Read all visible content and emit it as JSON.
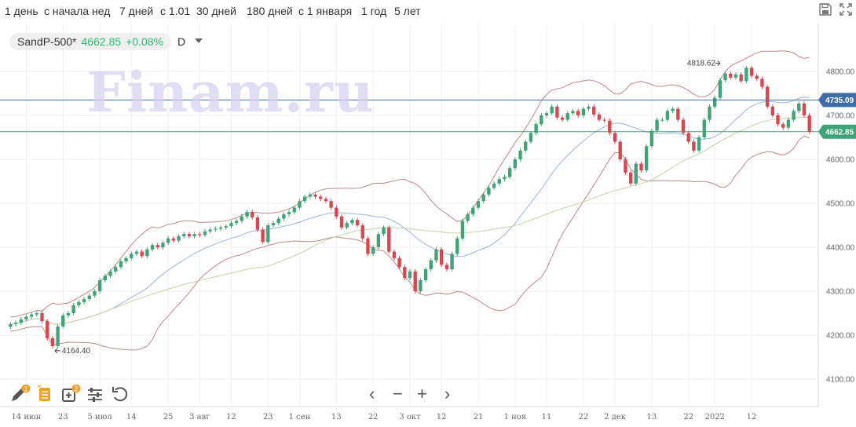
{
  "toolbar": {
    "periods": [
      "1 день",
      "с начала нед",
      "7 дней",
      "с 1.01",
      "30 дней",
      "180 дней",
      "с 1 января",
      "1 год",
      "5 лет"
    ],
    "save_icon": "save-icon",
    "fullscreen_icon": "fullscreen-icon"
  },
  "legend": {
    "instrument": "SandP-500*",
    "price": "4662.85",
    "change": "+0.08%",
    "interval": "D"
  },
  "watermark": "Finam.ru",
  "bottom_tools": {
    "draw_badge": "1",
    "layers_badge": "2",
    "icons": [
      "pencil-icon",
      "notes-icon",
      "add-indicator-icon",
      "settings-icon",
      "undo-icon"
    ],
    "nav": [
      "‹",
      "−",
      "+",
      "›"
    ]
  },
  "chart_data": {
    "type": "candlestick",
    "y_ticks": [
      4100,
      4200,
      4300,
      4400,
      4500,
      4600,
      4700,
      4800
    ],
    "ylim": [
      4075,
      4880
    ],
    "x_ticks": [
      {
        "label": "14 июн",
        "i": 3
      },
      {
        "label": "23",
        "i": 10
      },
      {
        "label": "5 июл",
        "i": 17
      },
      {
        "label": "14",
        "i": 23
      },
      {
        "label": "25",
        "i": 30
      },
      {
        "label": "3 авг",
        "i": 36
      },
      {
        "label": "12",
        "i": 42
      },
      {
        "label": "23",
        "i": 49
      },
      {
        "label": "1 сен",
        "i": 55
      },
      {
        "label": "13",
        "i": 62
      },
      {
        "label": "22",
        "i": 69
      },
      {
        "label": "3 окт",
        "i": 76
      },
      {
        "label": "12",
        "i": 82
      },
      {
        "label": "21",
        "i": 89
      },
      {
        "label": "1 ноя",
        "i": 96
      },
      {
        "label": "11",
        "i": 102
      },
      {
        "label": "22",
        "i": 109
      },
      {
        "label": "2 дек",
        "i": 115
      },
      {
        "label": "13",
        "i": 122
      },
      {
        "label": "22",
        "i": 129
      },
      {
        "label": "2022",
        "i": 134
      },
      {
        "label": "12",
        "i": 141
      }
    ],
    "price_labels": [
      {
        "value": 4735.09,
        "text": "4735.09",
        "color": "#3f6ea6"
      },
      {
        "value": 4662.85,
        "text": "4662.85",
        "color": "#3fa377"
      }
    ],
    "annotations": [
      {
        "text": "4818.62",
        "value": 4818.62,
        "i": 135
      },
      {
        "text": "4164.40",
        "value": 4164.4,
        "i": 8
      }
    ],
    "closes": [
      4225,
      4228,
      4236,
      4242,
      4247,
      4250,
      4232,
      4193,
      4175,
      4220,
      4245,
      4250,
      4268,
      4275,
      4282,
      4290,
      4300,
      4325,
      4335,
      4345,
      4355,
      4368,
      4375,
      4385,
      4390,
      4380,
      4395,
      4405,
      4400,
      4410,
      4420,
      4415,
      4425,
      4430,
      4425,
      4430,
      4428,
      4436,
      4440,
      4442,
      4445,
      4448,
      4455,
      4460,
      4470,
      4480,
      4468,
      4440,
      4412,
      4450,
      4455,
      4465,
      4475,
      4480,
      4490,
      4505,
      4515,
      4520,
      4515,
      4510,
      4505,
      4490,
      4470,
      4445,
      4455,
      4462,
      4450,
      4420,
      4385,
      4400,
      4430,
      4445,
      4390,
      4375,
      4355,
      4330,
      4345,
      4300,
      4325,
      4350,
      4370,
      4395,
      4360,
      4350,
      4385,
      4420,
      4460,
      4475,
      4490,
      4505,
      4520,
      4535,
      4545,
      4555,
      4560,
      4580,
      4600,
      4620,
      4640,
      4660,
      4680,
      4700,
      4705,
      4720,
      4695,
      4690,
      4705,
      4710,
      4700,
      4715,
      4720,
      4702,
      4690,
      4688,
      4660,
      4640,
      4600,
      4570,
      4545,
      4590,
      4575,
      4630,
      4665,
      4690,
      4690,
      4710,
      4715,
      4690,
      4660,
      4640,
      4620,
      4650,
      4690,
      4720,
      4740,
      4780,
      4795,
      4786,
      4793,
      4778,
      4808,
      4790,
      4783,
      4765,
      4720,
      4700,
      4680,
      4672,
      4690,
      4710,
      4727,
      4700,
      4662.85
    ]
  }
}
